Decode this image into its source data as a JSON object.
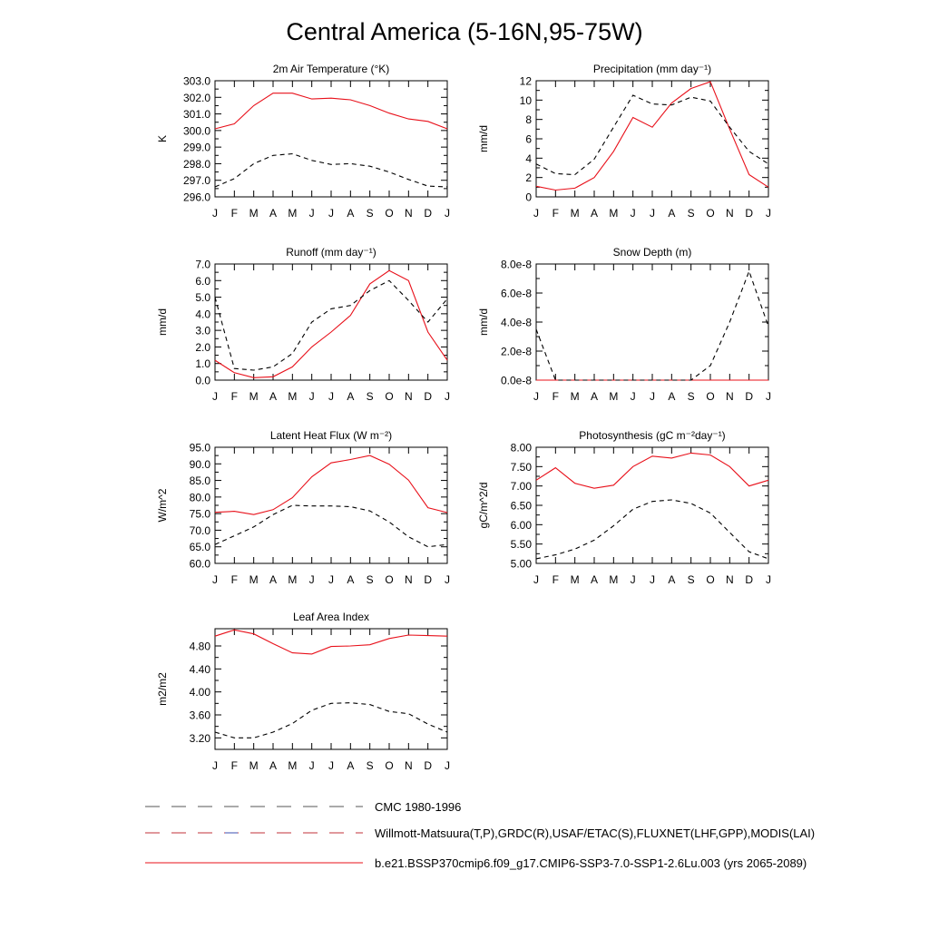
{
  "title": "Central America (5-16N,95-75W)",
  "months": [
    "J",
    "F",
    "M",
    "A",
    "M",
    "J",
    "J",
    "A",
    "S",
    "O",
    "N",
    "D",
    "J"
  ],
  "colors": {
    "model": "#e8101a",
    "obs": "#000000"
  },
  "legend": {
    "entries": [
      {
        "label": "CMC 1980-1996",
        "style": "dashed-black"
      },
      {
        "label": "Willmott-Matsuura(T,P),GRDC(R),USAF/ETAC(S),FLUXNET(LHF,GPP),MODIS(LAI)",
        "style": "dashed-red-blue"
      },
      {
        "label": "b.e21.BSSP370cmip6.f09_g17.CMIP6-SSP3-7.0-SSP1-2.6Lu.003 (yrs 2065-2089)",
        "style": "solid-red"
      }
    ]
  },
  "chart_data": [
    {
      "type": "line",
      "title": "2m Air Temperature (°K)",
      "ylabel": "K",
      "ylim": [
        296.0,
        303.0
      ],
      "yticks": [
        "296.0",
        "297.0",
        "298.0",
        "299.0",
        "300.0",
        "301.0",
        "302.0",
        "303.0"
      ],
      "x": [
        "J",
        "F",
        "M",
        "A",
        "M",
        "J",
        "J",
        "A",
        "S",
        "O",
        "N",
        "D",
        "J"
      ],
      "series": [
        {
          "name": "model",
          "values": [
            300.1,
            300.4,
            301.5,
            302.25,
            302.25,
            301.9,
            301.95,
            301.85,
            301.5,
            301.05,
            300.7,
            300.55,
            300.1
          ]
        },
        {
          "name": "obs",
          "values": [
            296.6,
            297.1,
            298.0,
            298.5,
            298.6,
            298.2,
            297.95,
            298.0,
            297.85,
            297.5,
            297.05,
            296.65,
            296.6
          ]
        }
      ]
    },
    {
      "type": "line",
      "title": "Precipitation (mm day⁻¹)",
      "ylabel": "mm/d",
      "ylim": [
        0,
        12
      ],
      "yticks": [
        "0",
        "2",
        "4",
        "6",
        "8",
        "10",
        "12"
      ],
      "x": [
        "J",
        "F",
        "M",
        "A",
        "M",
        "J",
        "J",
        "A",
        "S",
        "O",
        "N",
        "D",
        "J"
      ],
      "series": [
        {
          "name": "model",
          "values": [
            1.1,
            0.7,
            0.9,
            2.0,
            4.7,
            8.2,
            7.2,
            9.7,
            11.2,
            11.9,
            7.0,
            2.3,
            1.0
          ]
        },
        {
          "name": "obs",
          "values": [
            3.4,
            2.4,
            2.3,
            3.9,
            7.2,
            10.5,
            9.6,
            9.5,
            10.3,
            9.9,
            7.2,
            4.7,
            3.4
          ]
        }
      ]
    },
    {
      "type": "line",
      "title": "Runoff (mm day⁻¹)",
      "ylabel": "mm/d",
      "ylim": [
        0,
        7
      ],
      "yticks": [
        "0.0",
        "1.0",
        "2.0",
        "3.0",
        "4.0",
        "5.0",
        "6.0",
        "7.0"
      ],
      "x": [
        "J",
        "F",
        "M",
        "A",
        "M",
        "J",
        "J",
        "A",
        "S",
        "O",
        "N",
        "D",
        "J"
      ],
      "series": [
        {
          "name": "model",
          "values": [
            1.2,
            0.45,
            0.15,
            0.2,
            0.8,
            2.0,
            2.9,
            3.9,
            5.8,
            6.6,
            6.0,
            2.9,
            1.2
          ]
        },
        {
          "name": "obs",
          "values": [
            5.0,
            0.7,
            0.6,
            0.8,
            1.6,
            3.5,
            4.3,
            4.5,
            5.4,
            6.0,
            4.8,
            3.5,
            4.9
          ]
        }
      ]
    },
    {
      "type": "line",
      "title": "Snow Depth (m)",
      "ylabel": "mm/d",
      "ylim": [
        0,
        8e-08
      ],
      "yticks": [
        "0.0e-8",
        "2.0e-8",
        "4.0e-8",
        "6.0e-8",
        "8.0e-8"
      ],
      "x": [
        "J",
        "F",
        "M",
        "A",
        "M",
        "J",
        "J",
        "A",
        "S",
        "O",
        "N",
        "D",
        "J"
      ],
      "series": [
        {
          "name": "model",
          "values": [
            0,
            0,
            0,
            0,
            0,
            0,
            0,
            0,
            0,
            0,
            0,
            0,
            0
          ]
        },
        {
          "name": "obs",
          "values": [
            3.5e-08,
            0,
            0,
            0,
            0,
            0,
            0,
            0,
            0,
            1e-08,
            4e-08,
            7.5e-08,
            3.7e-08
          ]
        }
      ]
    },
    {
      "type": "line",
      "title": "Latent Heat Flux (W m⁻²)",
      "ylabel": "W/m^2",
      "ylim": [
        60,
        95
      ],
      "yticks": [
        "60.0",
        "65.0",
        "70.0",
        "75.0",
        "80.0",
        "85.0",
        "90.0",
        "95.0"
      ],
      "x": [
        "J",
        "F",
        "M",
        "A",
        "M",
        "J",
        "J",
        "A",
        "S",
        "O",
        "N",
        "D",
        "J"
      ],
      "series": [
        {
          "name": "model",
          "values": [
            75.4,
            75.7,
            74.7,
            76.2,
            79.8,
            86.1,
            90.3,
            91.3,
            92.5,
            89.9,
            85.1,
            76.8,
            75.3
          ]
        },
        {
          "name": "obs",
          "values": [
            65.7,
            68.3,
            71.0,
            74.7,
            77.5,
            77.3,
            77.3,
            77.1,
            75.8,
            72.5,
            68.0,
            65.0,
            65.7
          ]
        }
      ]
    },
    {
      "type": "line",
      "title": "Photosynthesis (gC m⁻²day⁻¹)",
      "ylabel": "gC/m^2/d",
      "ylim": [
        5.0,
        8.0
      ],
      "yticks": [
        "5.00",
        "5.50",
        "6.00",
        "6.50",
        "7.00",
        "7.50",
        "8.00"
      ],
      "x": [
        "J",
        "F",
        "M",
        "A",
        "M",
        "J",
        "J",
        "A",
        "S",
        "O",
        "N",
        "D",
        "J"
      ],
      "series": [
        {
          "name": "model",
          "values": [
            7.15,
            7.47,
            7.07,
            6.94,
            7.02,
            7.5,
            7.77,
            7.72,
            7.85,
            7.8,
            7.5,
            7.0,
            7.15
          ]
        },
        {
          "name": "obs",
          "values": [
            5.12,
            5.22,
            5.37,
            5.6,
            5.97,
            6.4,
            6.6,
            6.64,
            6.55,
            6.3,
            5.8,
            5.3,
            5.12
          ]
        }
      ]
    },
    {
      "type": "line",
      "title": "Leaf Area Index",
      "ylabel": "m2/m2",
      "ylim": [
        3.0,
        5.1
      ],
      "yticks": [
        "3.20",
        "3.60",
        "4.00",
        "4.40",
        "4.80"
      ],
      "ytick_values": [
        3.2,
        3.6,
        4.0,
        4.4,
        4.8
      ],
      "x": [
        "J",
        "F",
        "M",
        "A",
        "M",
        "J",
        "J",
        "A",
        "S",
        "O",
        "N",
        "D",
        "J"
      ],
      "series": [
        {
          "name": "model",
          "values": [
            4.97,
            5.08,
            5.01,
            4.84,
            4.68,
            4.66,
            4.79,
            4.8,
            4.82,
            4.93,
            4.99,
            4.98,
            4.97
          ]
        },
        {
          "name": "obs",
          "values": [
            3.3,
            3.2,
            3.2,
            3.3,
            3.45,
            3.68,
            3.8,
            3.81,
            3.78,
            3.66,
            3.62,
            3.44,
            3.3
          ]
        }
      ]
    }
  ]
}
